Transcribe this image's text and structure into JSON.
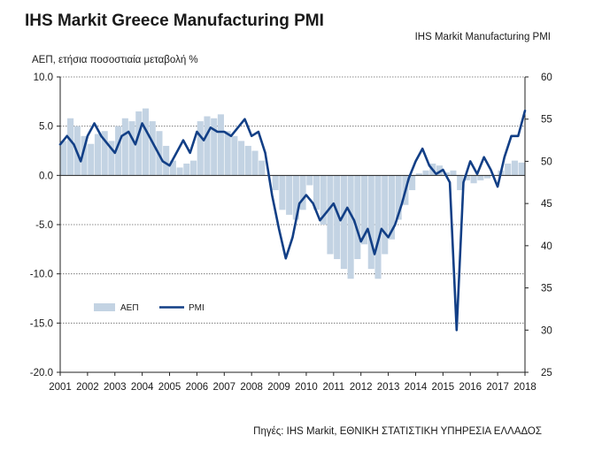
{
  "chart_data": {
    "type": "bar+line",
    "title": "IHS Markit Greece Manufacturing PMI",
    "left_axis_label": "ΑΕΠ, ετήσια ποσοστιαία μεταβολή %",
    "right_axis_label": "IHS Markit Manufacturing PMI",
    "source": "Πηγές: IHS Markit, ΕΘΝΙΚΗ ΣΤΑΤΙΣΤΙΚΗ ΥΠΗΡΕΣΙΑ ΕΛΛΑΔΟΣ",
    "left_axis": {
      "min": -20,
      "max": 10,
      "ticks": [
        "10.0",
        "5.0",
        "0.0",
        "-5.0",
        "-10.0",
        "-15.0",
        "-20.0"
      ]
    },
    "right_axis": {
      "min": 25,
      "max": 60,
      "ticks": [
        "60",
        "55",
        "50",
        "45",
        "40",
        "35",
        "30",
        "25"
      ]
    },
    "x_range": [
      2001,
      2018
    ],
    "x_tick_labels": [
      "2001",
      "2002",
      "2003",
      "2004",
      "2005",
      "2006",
      "2007",
      "2008",
      "2009",
      "2010",
      "2011",
      "2012",
      "2013",
      "2014",
      "2015",
      "2016",
      "2017",
      "2018"
    ],
    "grid": "horizontal-dotted",
    "legend": {
      "placement": "lower-left",
      "entries": [
        {
          "name": "ΑΕΠ",
          "color": "#c3d3e3"
        },
        {
          "name": "PMI",
          "color": "#123f86"
        }
      ]
    },
    "series": [
      {
        "name": "ΑΕΠ",
        "type": "bar",
        "axis": "left",
        "color": "#c3d3e3",
        "values": [
          [
            2001.0,
            3.5
          ],
          [
            2001.25,
            5.8
          ],
          [
            2001.5,
            5.0
          ],
          [
            2001.75,
            4.0
          ],
          [
            2002.0,
            3.2
          ],
          [
            2002.25,
            4.2
          ],
          [
            2002.5,
            4.5
          ],
          [
            2002.75,
            3.5
          ],
          [
            2003.0,
            5.0
          ],
          [
            2003.25,
            5.8
          ],
          [
            2003.5,
            5.5
          ],
          [
            2003.75,
            6.5
          ],
          [
            2004.0,
            6.8
          ],
          [
            2004.25,
            5.5
          ],
          [
            2004.5,
            4.5
          ],
          [
            2004.75,
            3.0
          ],
          [
            2005.0,
            1.5
          ],
          [
            2005.25,
            0.8
          ],
          [
            2005.5,
            1.2
          ],
          [
            2005.75,
            1.5
          ],
          [
            2006.0,
            5.5
          ],
          [
            2006.25,
            6.0
          ],
          [
            2006.5,
            5.8
          ],
          [
            2006.75,
            6.2
          ],
          [
            2007.0,
            4.5
          ],
          [
            2007.25,
            4.0
          ],
          [
            2007.5,
            3.5
          ],
          [
            2007.75,
            3.0
          ],
          [
            2008.0,
            2.5
          ],
          [
            2008.25,
            1.5
          ],
          [
            2008.5,
            0.0
          ],
          [
            2008.75,
            -1.5
          ],
          [
            2009.0,
            -3.5
          ],
          [
            2009.25,
            -4.0
          ],
          [
            2009.5,
            -4.5
          ],
          [
            2009.75,
            -3.5
          ],
          [
            2010.0,
            -1.0
          ],
          [
            2010.25,
            -3.5
          ],
          [
            2010.5,
            -5.0
          ],
          [
            2010.75,
            -8.0
          ],
          [
            2011.0,
            -8.5
          ],
          [
            2011.25,
            -9.5
          ],
          [
            2011.5,
            -10.5
          ],
          [
            2011.75,
            -8.5
          ],
          [
            2012.0,
            -7.0
          ],
          [
            2012.25,
            -9.5
          ],
          [
            2012.5,
            -10.5
          ],
          [
            2012.75,
            -8.0
          ],
          [
            2013.0,
            -6.5
          ],
          [
            2013.25,
            -4.5
          ],
          [
            2013.5,
            -3.0
          ],
          [
            2013.75,
            -1.5
          ],
          [
            2014.0,
            0.2
          ],
          [
            2014.25,
            0.5
          ],
          [
            2014.5,
            1.2
          ],
          [
            2014.75,
            1.0
          ],
          [
            2015.0,
            0.3
          ],
          [
            2015.25,
            0.5
          ],
          [
            2015.5,
            -1.5
          ],
          [
            2015.75,
            -0.5
          ],
          [
            2016.0,
            -0.8
          ],
          [
            2016.25,
            -0.5
          ],
          [
            2016.5,
            -0.3
          ],
          [
            2016.75,
            0.0
          ],
          [
            2017.0,
            0.5
          ],
          [
            2017.25,
            1.2
          ],
          [
            2017.5,
            1.5
          ],
          [
            2017.75,
            1.3
          ]
        ]
      },
      {
        "name": "PMI",
        "type": "line",
        "axis": "right",
        "color": "#123f86",
        "values": [
          [
            2001.0,
            52.0
          ],
          [
            2001.25,
            53.0
          ],
          [
            2001.5,
            52.0
          ],
          [
            2001.75,
            50.0
          ],
          [
            2002.0,
            53.0
          ],
          [
            2002.25,
            54.5
          ],
          [
            2002.5,
            53.0
          ],
          [
            2002.75,
            52.0
          ],
          [
            2003.0,
            51.0
          ],
          [
            2003.25,
            53.0
          ],
          [
            2003.5,
            53.5
          ],
          [
            2003.75,
            52.0
          ],
          [
            2004.0,
            54.5
          ],
          [
            2004.25,
            53.0
          ],
          [
            2004.5,
            51.5
          ],
          [
            2004.75,
            50.0
          ],
          [
            2005.0,
            49.5
          ],
          [
            2005.25,
            51.0
          ],
          [
            2005.5,
            52.5
          ],
          [
            2005.75,
            51.0
          ],
          [
            2006.0,
            53.5
          ],
          [
            2006.25,
            52.5
          ],
          [
            2006.5,
            54.0
          ],
          [
            2006.75,
            53.5
          ],
          [
            2007.0,
            53.5
          ],
          [
            2007.25,
            53.0
          ],
          [
            2007.5,
            54.0
          ],
          [
            2007.75,
            55.0
          ],
          [
            2008.0,
            53.0
          ],
          [
            2008.25,
            53.5
          ],
          [
            2008.5,
            51.0
          ],
          [
            2008.75,
            46.0
          ],
          [
            2009.0,
            42.0
          ],
          [
            2009.25,
            38.5
          ],
          [
            2009.5,
            41.0
          ],
          [
            2009.75,
            45.0
          ],
          [
            2010.0,
            46.0
          ],
          [
            2010.25,
            45.0
          ],
          [
            2010.5,
            43.0
          ],
          [
            2010.75,
            44.0
          ],
          [
            2011.0,
            45.0
          ],
          [
            2011.25,
            43.0
          ],
          [
            2011.5,
            44.5
          ],
          [
            2011.75,
            43.0
          ],
          [
            2012.0,
            40.5
          ],
          [
            2012.25,
            42.0
          ],
          [
            2012.5,
            39.0
          ],
          [
            2012.75,
            42.0
          ],
          [
            2013.0,
            41.0
          ],
          [
            2013.25,
            42.5
          ],
          [
            2013.5,
            45.0
          ],
          [
            2013.75,
            48.0
          ],
          [
            2014.0,
            50.0
          ],
          [
            2014.25,
            51.5
          ],
          [
            2014.5,
            49.5
          ],
          [
            2014.75,
            48.5
          ],
          [
            2015.0,
            49.0
          ],
          [
            2015.25,
            47.5
          ],
          [
            2015.5,
            30.0
          ],
          [
            2015.75,
            47.5
          ],
          [
            2016.0,
            50.0
          ],
          [
            2016.25,
            48.5
          ],
          [
            2016.5,
            50.5
          ],
          [
            2016.75,
            49.0
          ],
          [
            2017.0,
            47.0
          ],
          [
            2017.25,
            50.5
          ],
          [
            2017.5,
            53.0
          ],
          [
            2017.75,
            53.0
          ],
          [
            2018.0,
            56.0
          ]
        ]
      }
    ]
  }
}
